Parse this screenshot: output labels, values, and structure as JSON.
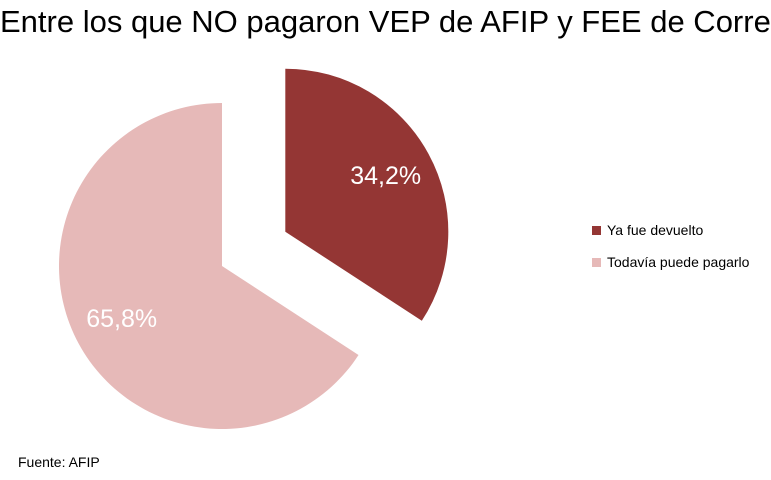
{
  "title": "Entre los que NO pagaron VEP de AFIP y FEE de Correo",
  "source": "Fuente: AFIP",
  "chart_data": {
    "type": "pie",
    "title": "Entre los que NO pagaron VEP de AFIP y FEE de Correo",
    "slices": [
      {
        "label": "Ya fue devuelto",
        "value": 34.2,
        "display": "34,2%",
        "color": "#943634",
        "exploded": true
      },
      {
        "label": "Todavía puede pagarlo",
        "value": 65.8,
        "display": "65,8%",
        "color": "#E6B9B8",
        "exploded": false
      }
    ],
    "legend_position": "right",
    "data_label_color": "#FFFFFF"
  }
}
